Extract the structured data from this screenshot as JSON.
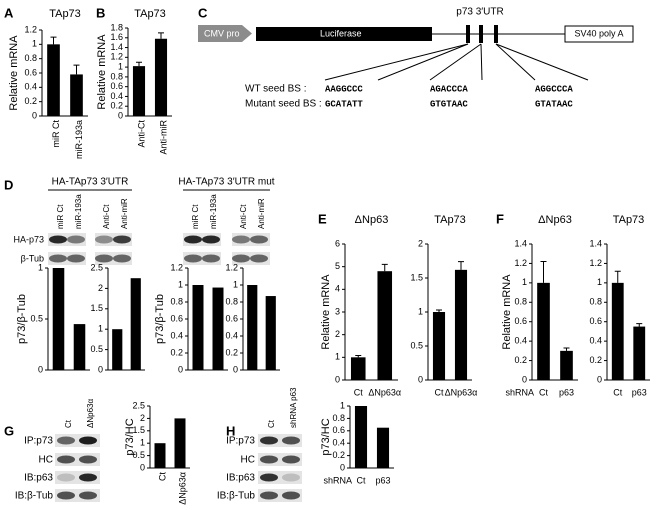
{
  "panel_labels": [
    "A",
    "B",
    "C",
    "D",
    "E",
    "F",
    "G",
    "H"
  ],
  "construct": {
    "promoter": "CMV pro",
    "reporter": "Luciferase",
    "utr": "p73 3′UTR",
    "polya": "SV40 poly A",
    "wt_label": "WT seed BS :",
    "mutant_label": "Mutant seed BS :",
    "wt_seeds": [
      "AAGGCCC",
      "AGACCCA",
      "AGGCCCA"
    ],
    "mutant_seeds": [
      "GCATATT",
      "GTGTAAC",
      "GTATAAC"
    ]
  },
  "blot_D": {
    "groups": [
      {
        "title": "HA-TAp73 3′UTR",
        "lanes": [
          "miR Ct",
          "miR-193a",
          "Anti-Ct",
          "Anti-miR"
        ]
      },
      {
        "title": "HA-TAp73 3′UTR mut",
        "lanes": [
          "miR Ct",
          "miR-193a",
          "Anti-Ct",
          "Anti-miR"
        ]
      }
    ],
    "rows": [
      "HA-p73",
      "β-Tub"
    ]
  },
  "blot_G": {
    "lanes": [
      "Ct",
      "ΔNp63α"
    ],
    "rows": [
      "IP:p73",
      "HC",
      "IB:p63",
      "IB:β-Tub"
    ]
  },
  "blot_H": {
    "lanes": [
      "Ct",
      "shRNA p63"
    ],
    "rows": [
      "IP:p73",
      "HC",
      "IB:p63",
      "IB:β-Tub"
    ]
  },
  "chart_data": [
    {
      "type": "bar",
      "title": "TAp73",
      "ylabel": "Relative mRNA",
      "categories": [
        "miR Ct",
        "miR-193a"
      ],
      "values": [
        1.0,
        0.58
      ],
      "errors": [
        0.1,
        0.13
      ],
      "color": "#000000",
      "ylim": [
        0,
        1.2
      ],
      "yticks": [
        0,
        0.2,
        0.4,
        0.6,
        0.8,
        1,
        1.2
      ]
    },
    {
      "type": "bar",
      "title": "TAp73",
      "ylabel": "Relative mRNA",
      "categories": [
        "Anti-Ct",
        "Anti-miR"
      ],
      "values": [
        1.02,
        1.58
      ],
      "errors": [
        0.08,
        0.12
      ],
      "color": "#000000",
      "ylim": [
        0,
        1.8
      ],
      "yticks": [
        0,
        0.2,
        0.4,
        0.6,
        0.8,
        1,
        1.2,
        1.4,
        1.6,
        1.8
      ]
    },
    {
      "type": "bar",
      "ylabel": "p73/β-Tub",
      "values": [
        1.0,
        0.45
      ],
      "color": "#000000",
      "ylim": [
        0,
        1
      ],
      "yticks": [
        0,
        0.5,
        1
      ]
    },
    {
      "type": "bar",
      "values": [
        1.0,
        2.25
      ],
      "color": "#000000",
      "ylim": [
        0,
        2.5
      ],
      "yticks": [
        0,
        0.5,
        1,
        1.5,
        2,
        2.5
      ]
    },
    {
      "type": "bar",
      "ylabel": "p73/β-Tub",
      "values": [
        1.0,
        0.97
      ],
      "color": "#000000",
      "ylim": [
        0,
        1.2
      ],
      "yticks": [
        0,
        0.2,
        0.4,
        0.6,
        0.8,
        1,
        1.2
      ]
    },
    {
      "type": "bar",
      "values": [
        1.0,
        0.87
      ],
      "color": "#000000",
      "ylim": [
        0,
        1.2
      ],
      "yticks": [
        0,
        0.2,
        0.4,
        0.6,
        0.8,
        1,
        1.2
      ]
    },
    {
      "type": "bar",
      "title": "ΔNp63",
      "ylabel": "Relative mRNA",
      "categories": [
        "Ct",
        "ΔNp63α"
      ],
      "values": [
        1.0,
        4.8
      ],
      "errors": [
        0.08,
        0.3
      ],
      "color": "#000000",
      "ylim": [
        0,
        6
      ],
      "yticks": [
        0,
        1,
        2,
        3,
        4,
        5,
        6
      ]
    },
    {
      "type": "bar",
      "title": "TAp73",
      "categories": [
        "Ct",
        "ΔNp63α"
      ],
      "values": [
        1.0,
        1.62
      ],
      "errors": [
        0.03,
        0.12
      ],
      "color": "#000000",
      "ylim": [
        0,
        2
      ],
      "yticks": [
        0,
        0.5,
        1,
        1.5,
        2
      ]
    },
    {
      "type": "bar",
      "title": "ΔNp63",
      "ylabel": "Relative mRNA",
      "xlabel": "shRNA",
      "categories": [
        "Ct",
        "p63"
      ],
      "values": [
        1.0,
        0.3
      ],
      "errors": [
        0.22,
        0.03
      ],
      "color": "#000000",
      "ylim": [
        0,
        1.4
      ],
      "yticks": [
        0,
        0.2,
        0.4,
        0.6,
        0.8,
        1,
        1.2,
        1.4
      ]
    },
    {
      "type": "bar",
      "title": "TAp73",
      "categories": [
        "Ct",
        "p63"
      ],
      "values": [
        1.0,
        0.55
      ],
      "errors": [
        0.12,
        0.03
      ],
      "color": "#000000",
      "ylim": [
        0,
        1.4
      ],
      "yticks": [
        0,
        0.2,
        0.4,
        0.6,
        0.8,
        1,
        1.2,
        1.4
      ]
    },
    {
      "type": "bar",
      "ylabel": "p73/HC",
      "categories": [
        "Ct",
        "ΔNp63α"
      ],
      "values": [
        1.0,
        2.0
      ],
      "color": "#000000",
      "ylim": [
        0,
        2.5
      ],
      "yticks": [
        0,
        0.5,
        1,
        1.5,
        2,
        2.5
      ]
    },
    {
      "type": "bar",
      "ylabel": "p73/HC",
      "xlabel": "shRNA",
      "categories": [
        "Ct",
        "p63"
      ],
      "values": [
        1.0,
        0.65
      ],
      "color": "#000000",
      "ylim": [
        0,
        1
      ],
      "yticks": [
        0,
        0.2,
        0.4,
        0.6,
        0.8,
        1
      ]
    }
  ]
}
